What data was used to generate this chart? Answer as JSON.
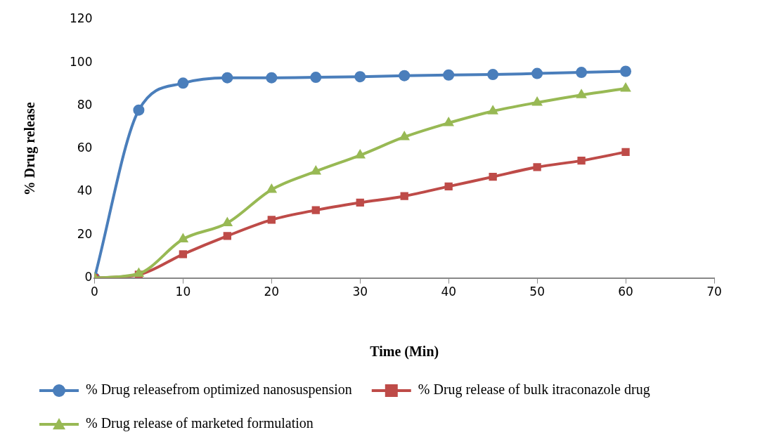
{
  "chart_data": {
    "type": "line",
    "xlabel": "Time (Min)",
    "ylabel": "% Drug release",
    "x": [
      0,
      5,
      10,
      15,
      20,
      25,
      30,
      35,
      40,
      45,
      50,
      55,
      60
    ],
    "xlim": [
      0,
      70
    ],
    "xticks": [
      0,
      10,
      20,
      30,
      40,
      50,
      60,
      70
    ],
    "ylim": [
      0,
      120
    ],
    "yticks": [
      0,
      20,
      40,
      60,
      80,
      100,
      120
    ],
    "grid": false,
    "legend": "bottom",
    "series": [
      {
        "name": "% Drug releasefrom optimized nanosuspension",
        "color": "#4a7ebb",
        "marker": "circle",
        "values": [
          0,
          78,
          90.5,
          93,
          93,
          93.2,
          93.5,
          94,
          94.3,
          94.5,
          95,
          95.5,
          96
        ]
      },
      {
        "name": "% Drug release of bulk itraconazole drug",
        "color": "#be4b48",
        "marker": "square",
        "values": [
          0,
          1.5,
          11,
          19.5,
          27,
          31.5,
          35,
          38,
          42.5,
          47,
          51.5,
          54.5,
          58.5
        ]
      },
      {
        "name": "% Drug release of marketed formulation",
        "color": "#98b954",
        "marker": "triangle",
        "values": [
          0,
          2,
          18,
          25.5,
          41,
          49.5,
          57,
          65.5,
          72,
          77.5,
          81.5,
          85,
          88
        ]
      }
    ]
  }
}
